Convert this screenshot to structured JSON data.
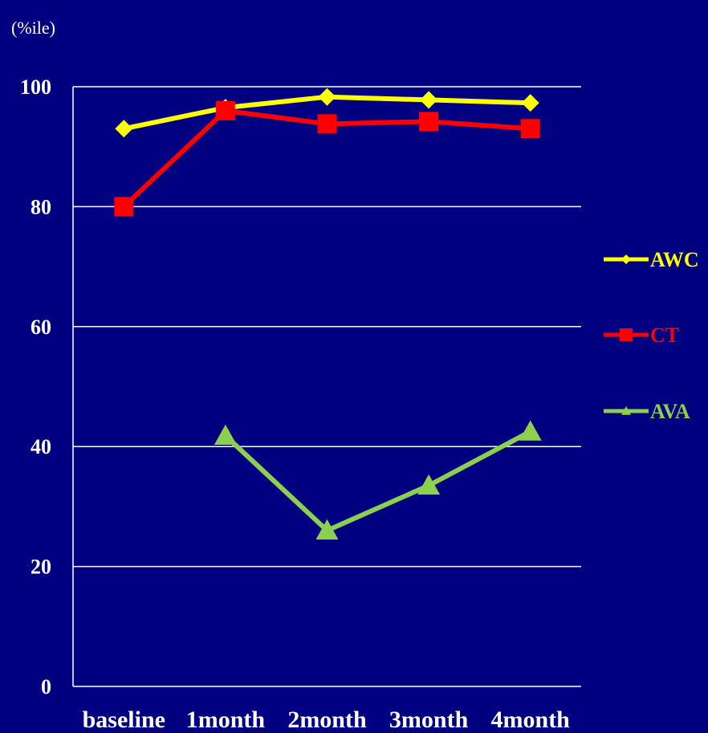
{
  "chart_data": {
    "type": "line",
    "ylabel": "(%ile)",
    "categories": [
      "baseline",
      "1month",
      "2month",
      "3month",
      "4month"
    ],
    "ylim": [
      0,
      100
    ],
    "yticks": [
      0,
      20,
      40,
      60,
      80,
      100
    ],
    "grid": true,
    "legend_position": "right",
    "series": [
      {
        "name": "AWC",
        "color": "#ffff00",
        "marker": "diamond",
        "values": [
          93,
          96.5,
          98.3,
          97.8,
          97.3
        ]
      },
      {
        "name": "CT",
        "color": "#ff0000",
        "marker": "square",
        "values": [
          80,
          96,
          93.8,
          94.2,
          93
        ]
      },
      {
        "name": "AVA",
        "color": "#8cd050",
        "marker": "triangle",
        "values": [
          null,
          41.8,
          26,
          33.5,
          42.5
        ]
      }
    ]
  }
}
